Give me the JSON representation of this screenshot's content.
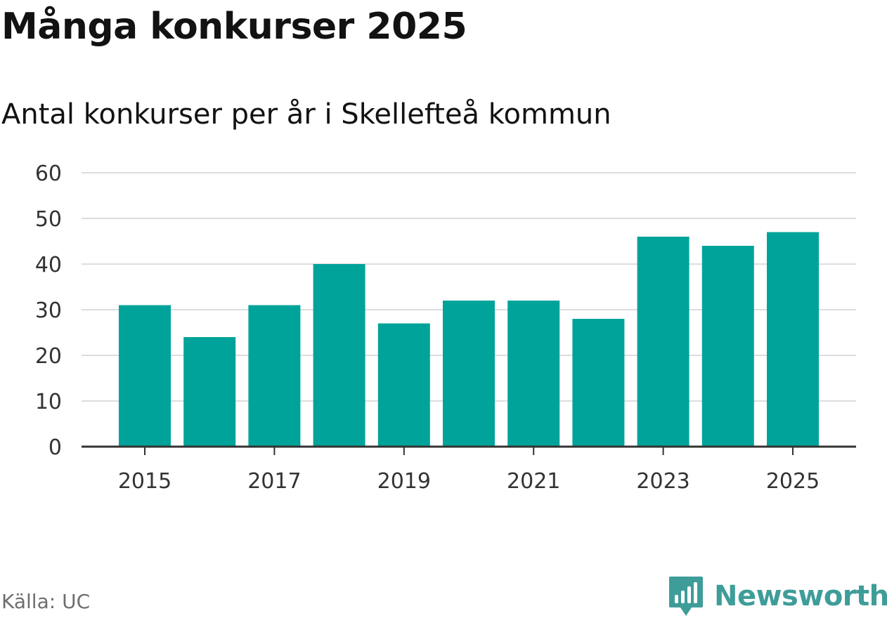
{
  "header": {
    "title": "Många konkurser 2025",
    "subtitle": "Antal konkurser per år i Skellefteå kommun"
  },
  "footer": {
    "source": "Källa: UC",
    "brand": "Newsworthy"
  },
  "colors": {
    "bar": "#00a39a",
    "grid": "#dddddd",
    "axis": "#333333",
    "brand": "#3e9d99"
  },
  "chart_data": {
    "type": "bar",
    "title": "Många konkurser 2025",
    "subtitle": "Antal konkurser per år i Skellefteå kommun",
    "xlabel": "",
    "ylabel": "",
    "categories": [
      "2015",
      "2016",
      "2017",
      "2018",
      "2019",
      "2020",
      "2021",
      "2022",
      "2023",
      "2024",
      "2025"
    ],
    "values": [
      31,
      24,
      31,
      40,
      27,
      32,
      32,
      28,
      46,
      44,
      47
    ],
    "x_tick_labels": [
      "2015",
      "2017",
      "2019",
      "2021",
      "2023",
      "2025"
    ],
    "y_ticks": [
      0,
      10,
      20,
      30,
      40,
      50,
      60
    ],
    "ylim": [
      0,
      60
    ],
    "grid": true,
    "legend": "none"
  }
}
